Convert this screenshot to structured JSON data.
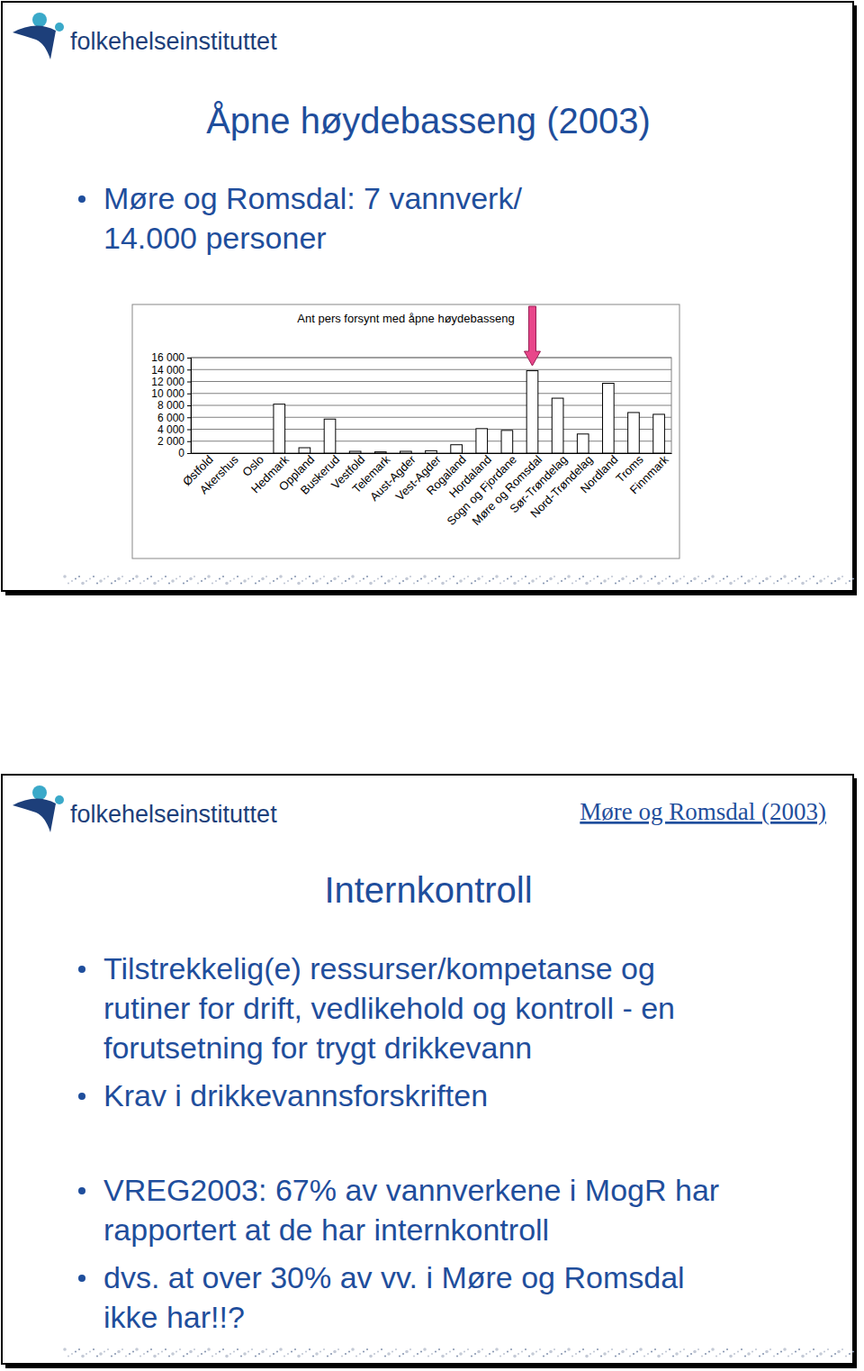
{
  "slides": [
    {
      "logo": "folkehelseinstituttet",
      "title": "Åpne høydebasseng (2003)",
      "bullets": [
        [
          "Møre og Romsdal: 7 vannverk/",
          "14.000 personer"
        ]
      ]
    },
    {
      "logo": "folkehelseinstituttet",
      "header": "Møre og Romsdal (2003)",
      "title": "Internkontroll",
      "bullets": [
        [
          "Tilstrekkelig(e) ressurser/kompetanse og",
          "rutiner for drift, vedlikehold og kontroll - en",
          "forutsetning for trygt drikkevann"
        ],
        [
          "Krav i drikkevannsforskriften"
        ],
        [
          "VREG2003: 67% av vannverkene i MogR har",
          "rapportert at de har internkontroll"
        ],
        [
          "dvs. at over 30% av vv. i Møre og Romsdal",
          "ikke har!!?"
        ]
      ]
    }
  ],
  "chart_data": {
    "type": "bar",
    "title": "Ant pers forsynt med åpne høydebasseng",
    "categories": [
      "Østfold",
      "Akershus",
      "Oslo",
      "Hedmark",
      "Oppland",
      "Buskerud",
      "Vestfold",
      "Telemark",
      "Aust-Agder",
      "Vest-Agder",
      "Rogaland",
      "Hordaland",
      "Sogn og Fjordane",
      "Møre og Romsdal",
      "Sør-Trøndelag",
      "Nord-Trøndelag",
      "Nordland",
      "Troms",
      "Finnmark"
    ],
    "values": [
      0,
      0,
      0,
      8200,
      900,
      5700,
      300,
      200,
      300,
      400,
      1400,
      4100,
      3800,
      13800,
      9200,
      3200,
      11700,
      6800,
      6500
    ],
    "color": "#ffffff",
    "ylim": [
      0,
      16000
    ],
    "yticks": [
      0,
      {
        "value": 2000,
        "label": "2 000"
      },
      {
        "value": 4000,
        "label": "4 000"
      },
      {
        "value": 6000,
        "label": "6 000"
      },
      {
        "value": 8000,
        "label": "8 000"
      },
      {
        "value": 10000,
        "label": "10 000"
      },
      {
        "value": 12000,
        "label": "12 000"
      },
      {
        "value": 14000,
        "label": "14 000"
      },
      {
        "value": 16000,
        "label": "16 000"
      }
    ],
    "grid": true
  }
}
